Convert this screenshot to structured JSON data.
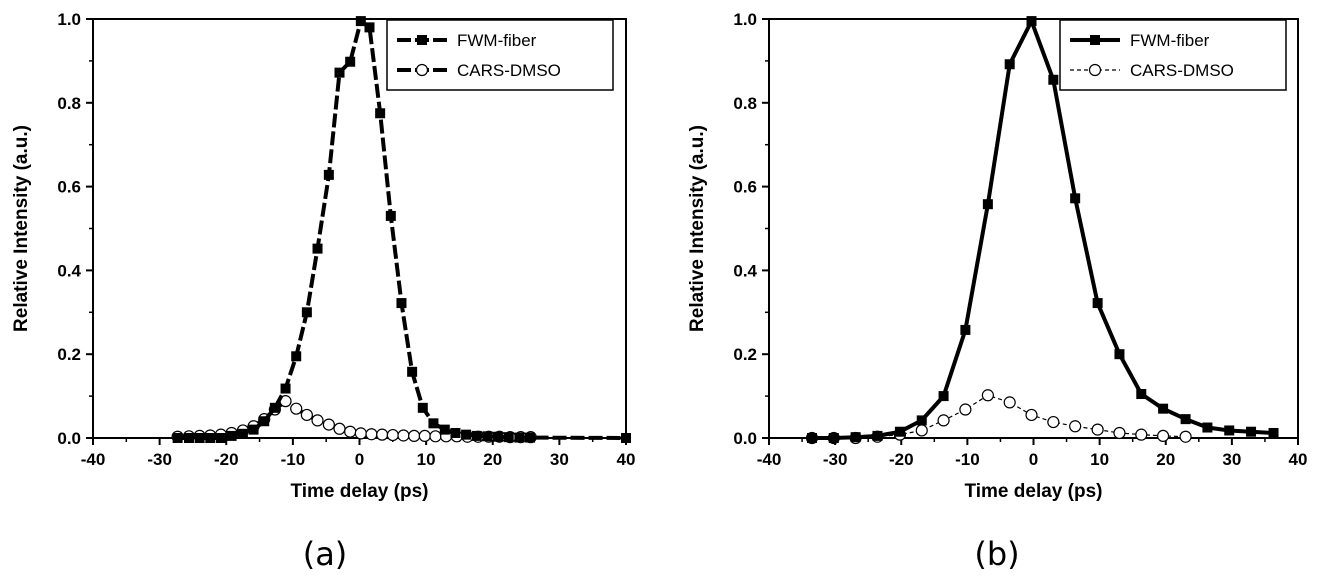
{
  "chart_data": [
    {
      "type": "line",
      "panel_label": "(a)",
      "xlabel": "Time delay (ps)",
      "ylabel": "Relative Intensity (a.u.)",
      "xlim": [
        -40,
        40
      ],
      "ylim": [
        0,
        1.0
      ],
      "xticks": [
        "-40",
        "-30",
        "-20",
        "-10",
        "0",
        "10",
        "20",
        "30",
        "40"
      ],
      "yticks": [
        "0.0",
        "0.2",
        "0.4",
        "0.6",
        "0.8",
        "1.0"
      ],
      "grid": false,
      "legend_position": "top-right",
      "series": [
        {
          "name": "FWM-fiber",
          "marker": "filled-square",
          "line": "thick-dash",
          "x": [
            -27.3,
            -25.6,
            -24.0,
            -22.4,
            -20.8,
            -19.2,
            -17.5,
            -15.9,
            -14.3,
            -12.7,
            -11.1,
            -9.5,
            -7.9,
            -6.3,
            -4.6,
            -3.0,
            -1.4,
            0.2,
            1.5,
            3.1,
            4.7,
            6.3,
            7.9,
            9.5,
            11.1,
            12.8,
            14.4,
            16.0,
            17.6,
            19.2,
            20.8,
            22.4,
            24.0,
            25.6,
            40.0
          ],
          "y": [
            0.0,
            0.0,
            0.0,
            0.0,
            0.0,
            0.005,
            0.01,
            0.02,
            0.04,
            0.072,
            0.118,
            0.195,
            0.3,
            0.452,
            0.628,
            0.872,
            0.898,
            0.995,
            0.98,
            0.775,
            0.53,
            0.322,
            0.158,
            0.072,
            0.035,
            0.02,
            0.012,
            0.008,
            0.005,
            0.004,
            0.003,
            0.002,
            0.001,
            0.001,
            0.0
          ]
        },
        {
          "name": "CARS-DMSO",
          "marker": "open-circle",
          "line": "thick-dash",
          "x": [
            -27.3,
            -25.6,
            -24.0,
            -22.4,
            -20.8,
            -19.2,
            -17.5,
            -15.9,
            -14.3,
            -12.7,
            -11.1,
            -9.5,
            -7.9,
            -6.3,
            -4.6,
            -3.0,
            -1.4,
            0.2,
            1.8,
            3.4,
            5.0,
            6.6,
            8.2,
            9.8,
            11.4,
            13.0,
            14.6,
            16.2,
            17.8,
            19.4,
            21.0,
            22.6,
            24.2,
            25.7
          ],
          "y": [
            0.003,
            0.004,
            0.005,
            0.006,
            0.008,
            0.012,
            0.018,
            0.028,
            0.045,
            0.068,
            0.088,
            0.07,
            0.055,
            0.042,
            0.032,
            0.022,
            0.015,
            0.011,
            0.009,
            0.008,
            0.007,
            0.006,
            0.005,
            0.005,
            0.004,
            0.004,
            0.004,
            0.003,
            0.003,
            0.003,
            0.003,
            0.002,
            0.002,
            0.002
          ]
        }
      ]
    },
    {
      "type": "line",
      "panel_label": "(b)",
      "xlabel": "Time delay (ps)",
      "ylabel": "Relative Intensity (a.u.)",
      "xlim": [
        -40,
        40
      ],
      "ylim": [
        0,
        1.0
      ],
      "xticks": [
        "-40",
        "-30",
        "-20",
        "-10",
        "0",
        "10",
        "20",
        "30",
        "40"
      ],
      "yticks": [
        "0.0",
        "0.2",
        "0.4",
        "0.6",
        "0.8",
        "1.0"
      ],
      "grid": false,
      "legend_position": "top-right",
      "series": [
        {
          "name": "FWM-fiber",
          "marker": "filled-square",
          "line": "thick-solid",
          "x": [
            -33.5,
            -30.2,
            -26.9,
            -23.6,
            -20.2,
            -16.9,
            -13.6,
            -10.3,
            -6.9,
            -3.6,
            -0.3,
            3.0,
            6.3,
            9.7,
            13.0,
            16.3,
            19.6,
            23.0,
            26.3,
            29.6,
            32.9,
            36.3
          ],
          "y": [
            0.0,
            0.0,
            0.002,
            0.005,
            0.015,
            0.042,
            0.1,
            0.258,
            0.558,
            0.892,
            0.995,
            0.855,
            0.572,
            0.322,
            0.2,
            0.105,
            0.07,
            0.045,
            0.025,
            0.018,
            0.015,
            0.012
          ]
        },
        {
          "name": "CARS-DMSO",
          "marker": "open-circle",
          "line": "thin-dash",
          "x": [
            -33.5,
            -30.2,
            -26.9,
            -23.6,
            -20.2,
            -16.9,
            -13.6,
            -10.3,
            -6.9,
            -3.6,
            -0.3,
            3.0,
            6.3,
            9.7,
            13.0,
            16.3,
            19.6,
            23.0
          ],
          "y": [
            0.0,
            0.0,
            0.0,
            0.003,
            0.008,
            0.018,
            0.042,
            0.068,
            0.102,
            0.085,
            0.055,
            0.038,
            0.028,
            0.02,
            0.012,
            0.008,
            0.005,
            0.003
          ]
        }
      ]
    }
  ]
}
